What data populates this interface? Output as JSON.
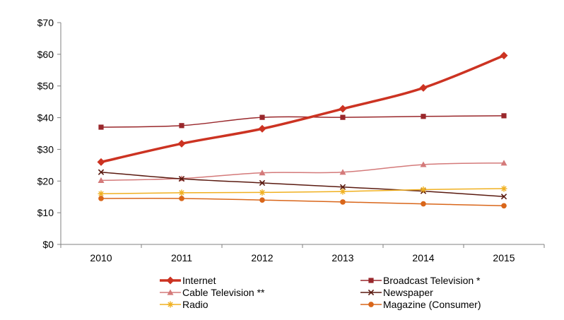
{
  "chart_data": {
    "type": "line",
    "title": "",
    "xlabel": "",
    "ylabel": "",
    "categories": [
      "2010",
      "2011",
      "2012",
      "2013",
      "2014",
      "2015"
    ],
    "ylim": [
      0,
      70
    ],
    "yticks": [
      0,
      10,
      20,
      30,
      40,
      50,
      60,
      70
    ],
    "ytick_labels": [
      "$0",
      "$10",
      "$20",
      "$30",
      "$40",
      "$50",
      "$60",
      "$70"
    ],
    "grid": false,
    "legend_position": "bottom",
    "series": [
      {
        "name": "Internet",
        "values": [
          26.0,
          31.8,
          36.5,
          42.8,
          49.4,
          59.6
        ],
        "color": "#cc3322",
        "marker": "diamond",
        "emphasis": true
      },
      {
        "name": "Broadcast Television *",
        "values": [
          37.0,
          37.5,
          40.1,
          40.1,
          40.4,
          40.6
        ],
        "color": "#99272b",
        "marker": "square"
      },
      {
        "name": "Cable Television **",
        "values": [
          20.2,
          20.8,
          22.6,
          22.8,
          25.2,
          25.7
        ],
        "color": "#d47a7a",
        "marker": "triangle"
      },
      {
        "name": "Newspaper",
        "values": [
          22.8,
          20.7,
          19.4,
          18.1,
          16.8,
          15.1
        ],
        "color": "#5a1a10",
        "marker": "x"
      },
      {
        "name": "Radio",
        "values": [
          16.0,
          16.3,
          16.4,
          16.7,
          17.3,
          17.6
        ],
        "color": "#f0b020",
        "marker": "star"
      },
      {
        "name": "Magazine (Consumer)",
        "values": [
          14.5,
          14.5,
          14.0,
          13.4,
          12.8,
          12.2
        ],
        "color": "#d9661a",
        "marker": "circle"
      }
    ]
  }
}
